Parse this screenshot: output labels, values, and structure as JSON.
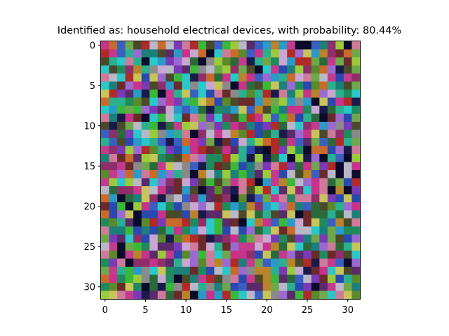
{
  "figure": {
    "background": "#ffffff"
  },
  "chart_data": {
    "type": "heatmap",
    "title": "Identified as: household electrical devices, with probability: 80.44%",
    "xlabel": "",
    "ylabel": "",
    "rows": 32,
    "cols": 32,
    "xlim": [
      -0.5,
      31.5
    ],
    "ylim": [
      31.5,
      -0.5
    ],
    "x_ticks": [
      0,
      5,
      10,
      15,
      20,
      25,
      30
    ],
    "y_ticks": [
      0,
      5,
      10,
      15,
      20,
      25,
      30
    ],
    "grid": false,
    "content": "32×32 grid of random RGB noise pixels",
    "palette": [
      "#1f8a5c",
      "#b8832a",
      "#2a48b0",
      "#c43b8e",
      "#6fa84a",
      "#1c7f7a",
      "#8e2f6a",
      "#c8c45a",
      "#3a5fc2",
      "#b02a2a",
      "#2ab08f",
      "#7a3ab8",
      "#d07a9a",
      "#4a4a2a",
      "#9acb3a",
      "#2a9ac8",
      "#c86a2a",
      "#5a2a6a",
      "#1a1a4a",
      "#b8b8c8",
      "#3ab83a",
      "#8a8a8a",
      "#c8328a",
      "#2a6a3a",
      "#6a2a2a",
      "#9a6ad0",
      "#2ac8c8",
      "#5a8a2a",
      "#c8a8d0",
      "#0a0a2a"
    ],
    "seed": 1337
  }
}
